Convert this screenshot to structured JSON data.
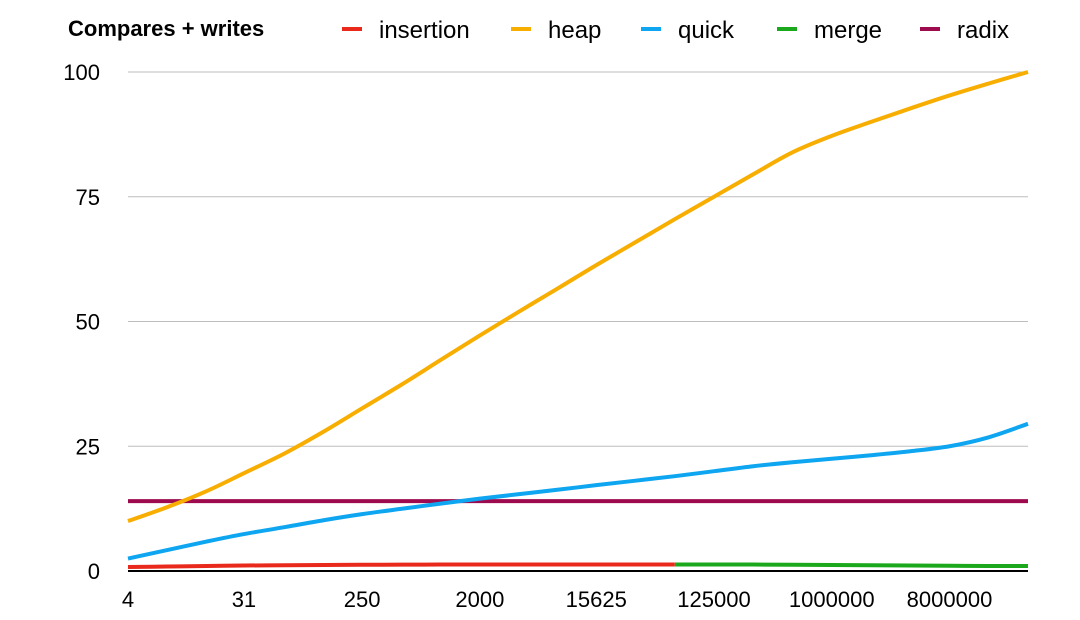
{
  "chart_data": {
    "type": "line",
    "title": "Compares + writes",
    "xlabel": "",
    "ylabel": "",
    "categories": [
      "4",
      "31",
      "250",
      "2000",
      "15625",
      "125000",
      "1000000",
      "8000000"
    ],
    "ylim": [
      0,
      100
    ],
    "yticks": [
      0,
      25,
      50,
      75,
      100
    ],
    "grid": true,
    "legend_position": "top",
    "x": [
      4,
      8,
      16,
      31,
      64,
      128,
      250,
      512,
      1000,
      2000,
      4000,
      8000,
      15625,
      31250,
      62500,
      125000,
      250000,
      500000,
      1000000,
      2000000,
      4000000,
      8000000,
      16000000,
      32000000
    ],
    "series": [
      {
        "name": "insertion",
        "color": "#e8291c",
        "values": [
          0.8,
          0.9,
          1.0,
          1.1,
          1.15,
          1.2,
          1.25,
          1.27,
          1.3,
          1.3,
          1.3,
          1.3,
          1.3,
          1.3,
          1.3,
          null,
          null,
          null,
          null,
          null,
          null,
          null,
          null,
          null
        ]
      },
      {
        "name": "heap",
        "color": "#f7ae00",
        "values": [
          10.0,
          12.8,
          16.0,
          19.6,
          23.6,
          28.0,
          32.6,
          37.5,
          42.3,
          47.2,
          52.0,
          56.7,
          61.3,
          65.9,
          70.5,
          75.0,
          79.5,
          83.9,
          87.2,
          90.0,
          92.7,
          95.3,
          97.7,
          100.0
        ]
      },
      {
        "name": "quick",
        "color": "#0ea5f1",
        "values": [
          2.5,
          4.2,
          5.9,
          7.4,
          8.8,
          10.2,
          11.4,
          12.5,
          13.5,
          14.5,
          15.4,
          16.3,
          17.2,
          18.1,
          19.0,
          20.0,
          21.0,
          21.8,
          22.5,
          23.2,
          24.0,
          25.0,
          26.8,
          29.5
        ]
      },
      {
        "name": "merge",
        "color": "#1ca81c",
        "values": [
          null,
          null,
          null,
          null,
          null,
          null,
          null,
          null,
          null,
          null,
          null,
          null,
          null,
          null,
          1.3,
          1.3,
          1.3,
          1.25,
          1.2,
          1.15,
          1.1,
          1.05,
          1.0,
          1.0
        ]
      },
      {
        "name": "radix",
        "color": "#9e0a4e",
        "values": [
          14,
          14,
          14,
          14,
          14,
          14,
          14,
          14,
          14,
          14,
          14,
          14,
          14,
          14,
          14,
          14,
          14,
          14,
          14,
          14,
          14,
          14,
          14,
          14
        ]
      }
    ]
  }
}
